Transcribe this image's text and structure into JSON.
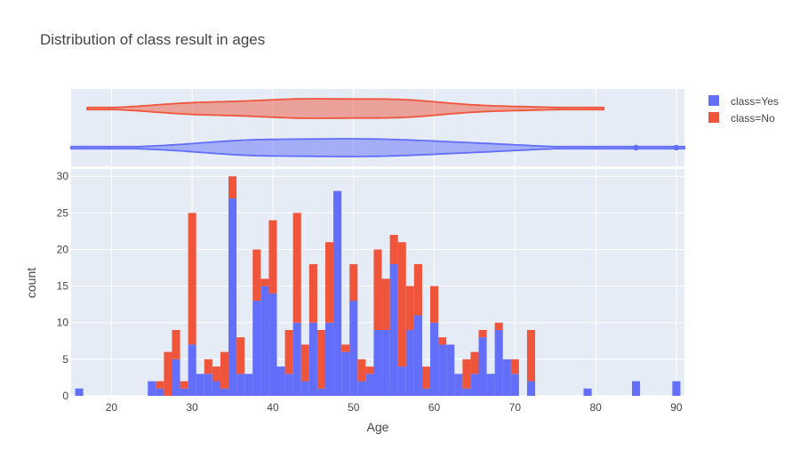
{
  "chart_data": {
    "type": "bar",
    "title": "Distribution of class result in ages",
    "xlabel": "Age",
    "ylabel": "count",
    "xlim": [
      15,
      91
    ],
    "ylim": [
      0,
      31
    ],
    "x_ticks": [
      20,
      30,
      40,
      50,
      60,
      70,
      80,
      90
    ],
    "y_ticks": [
      0,
      5,
      10,
      15,
      20,
      25,
      30
    ],
    "barmode": "stack",
    "bin_width": 1,
    "grid": true,
    "legend_position": "top-right",
    "series": [
      {
        "name": "class=Yes",
        "color": "#636efa",
        "bins": [
          [
            16,
            1
          ],
          [
            25,
            2
          ],
          [
            26,
            1
          ],
          [
            28,
            5
          ],
          [
            29,
            1
          ],
          [
            30,
            7
          ],
          [
            31,
            3
          ],
          [
            32,
            3
          ],
          [
            33,
            2
          ],
          [
            34,
            1
          ],
          [
            35,
            27
          ],
          [
            36,
            3
          ],
          [
            37,
            3
          ],
          [
            38,
            13
          ],
          [
            39,
            15
          ],
          [
            40,
            14
          ],
          [
            41,
            4
          ],
          [
            42,
            3
          ],
          [
            43,
            10
          ],
          [
            44,
            2
          ],
          [
            45,
            10
          ],
          [
            46,
            1
          ],
          [
            47,
            10
          ],
          [
            48,
            28
          ],
          [
            49,
            6
          ],
          [
            50,
            13
          ],
          [
            51,
            2
          ],
          [
            52,
            3
          ],
          [
            53,
            9
          ],
          [
            54,
            9
          ],
          [
            55,
            18
          ],
          [
            56,
            4
          ],
          [
            57,
            9
          ],
          [
            58,
            11
          ],
          [
            59,
            1
          ],
          [
            60,
            10
          ],
          [
            61,
            7
          ],
          [
            62,
            7
          ],
          [
            63,
            3
          ],
          [
            64,
            1
          ],
          [
            65,
            3
          ],
          [
            66,
            8
          ],
          [
            67,
            3
          ],
          [
            68,
            9
          ],
          [
            69,
            5
          ],
          [
            70,
            3
          ],
          [
            72,
            2
          ],
          [
            79,
            1
          ],
          [
            85,
            2
          ],
          [
            90,
            2
          ]
        ]
      },
      {
        "name": "class=No",
        "color": "#ef553b",
        "bins": [
          [
            26,
            1
          ],
          [
            27,
            6
          ],
          [
            28,
            4
          ],
          [
            29,
            1
          ],
          [
            30,
            18
          ],
          [
            32,
            2
          ],
          [
            33,
            2
          ],
          [
            34,
            5
          ],
          [
            35,
            3
          ],
          [
            36,
            5
          ],
          [
            38,
            7
          ],
          [
            39,
            1
          ],
          [
            40,
            10
          ],
          [
            42,
            6
          ],
          [
            43,
            15
          ],
          [
            44,
            5
          ],
          [
            45,
            8
          ],
          [
            46,
            8
          ],
          [
            47,
            11
          ],
          [
            49,
            1
          ],
          [
            50,
            5
          ],
          [
            51,
            3
          ],
          [
            52,
            1
          ],
          [
            53,
            11
          ],
          [
            54,
            7
          ],
          [
            55,
            4
          ],
          [
            56,
            17
          ],
          [
            57,
            6
          ],
          [
            58,
            7
          ],
          [
            59,
            3
          ],
          [
            60,
            5
          ],
          [
            61,
            1
          ],
          [
            64,
            4
          ],
          [
            65,
            3
          ],
          [
            66,
            1
          ],
          [
            68,
            1
          ],
          [
            70,
            2
          ],
          [
            72,
            7
          ]
        ]
      }
    ],
    "marginal": {
      "type": "violin",
      "series": [
        {
          "name": "class=No",
          "min": 17,
          "max": 81
        },
        {
          "name": "class=Yes",
          "min": 15,
          "max": 91,
          "outliers": [
            85,
            90
          ]
        }
      ]
    }
  },
  "legend": {
    "items": [
      {
        "label": "class=Yes",
        "color": "#636efa"
      },
      {
        "label": "class=No",
        "color": "#ef553b"
      }
    ]
  }
}
